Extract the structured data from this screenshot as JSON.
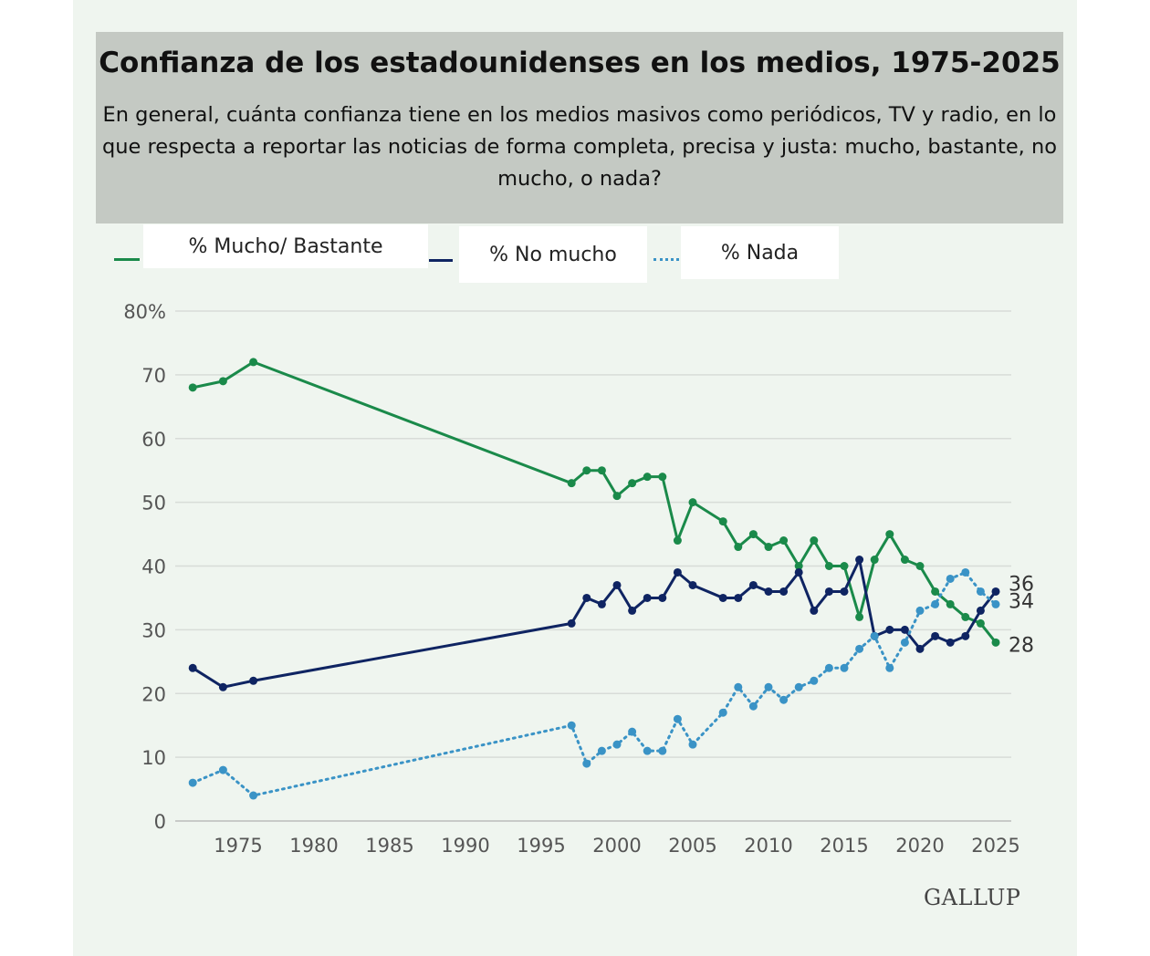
{
  "header": {
    "title": "Confianza de los estadounidenses en los medios, 1975-2025",
    "subtitle": "En general, cuánta confianza tiene en los medios masivos como periódicos, TV y radio, en lo que respecta a reportar las noticias de forma completa, precisa y justa: mucho, bastante, no mucho, o nada?"
  },
  "source": "GALLUP",
  "chart_data": {
    "type": "line",
    "title": "Confianza de los estadounidenses en los medios, 1975-2025",
    "xlabel": "",
    "ylabel": "",
    "ylim": [
      0,
      80
    ],
    "xlim": [
      1972,
      2025
    ],
    "y_ticks": [
      "0",
      "10",
      "20",
      "30",
      "40",
      "50",
      "60",
      "70",
      "80%"
    ],
    "y_tick_values": [
      0,
      10,
      20,
      30,
      40,
      50,
      60,
      70,
      80
    ],
    "x_ticks": [
      "1975",
      "1980",
      "1985",
      "1990",
      "1995",
      "2000",
      "2005",
      "2010",
      "2015",
      "2020",
      "2025"
    ],
    "x_tick_values": [
      1975,
      1980,
      1985,
      1990,
      1995,
      2000,
      2005,
      2010,
      2015,
      2020,
      2025
    ],
    "grid": true,
    "legend_placement": "top",
    "x": [
      1972,
      1974,
      1976,
      1997,
      1998,
      1999,
      2000,
      2001,
      2002,
      2003,
      2004,
      2005,
      2007,
      2008,
      2009,
      2010,
      2011,
      2012,
      2013,
      2014,
      2015,
      2016,
      2017,
      2018,
      2019,
      2020,
      2021,
      2022,
      2023,
      2024,
      2025
    ],
    "series": [
      {
        "name": "% Mucho/ Bastante",
        "color": "#1a8a4a",
        "style": "solid",
        "end_label": "28",
        "values": [
          68,
          69,
          72,
          53,
          55,
          55,
          51,
          53,
          54,
          54,
          44,
          50,
          47,
          43,
          45,
          43,
          44,
          40,
          44,
          40,
          40,
          32,
          41,
          45,
          41,
          40,
          36,
          34,
          32,
          31,
          28
        ]
      },
      {
        "name": "% No mucho",
        "color": "#0f2462",
        "style": "solid",
        "end_label": "36",
        "values": [
          24,
          21,
          22,
          31,
          35,
          34,
          37,
          33,
          35,
          35,
          39,
          37,
          35,
          35,
          37,
          36,
          36,
          39,
          33,
          36,
          36,
          41,
          29,
          30,
          30,
          27,
          29,
          28,
          29,
          33,
          36
        ]
      },
      {
        "name": "% Nada",
        "color": "#3a93c6",
        "style": "dotted",
        "end_label": "34",
        "values": [
          6,
          8,
          4,
          15,
          9,
          11,
          12,
          14,
          11,
          11,
          16,
          12,
          17,
          21,
          18,
          21,
          19,
          21,
          22,
          24,
          24,
          27,
          29,
          24,
          28,
          33,
          34,
          38,
          39,
          36,
          34
        ]
      }
    ]
  }
}
